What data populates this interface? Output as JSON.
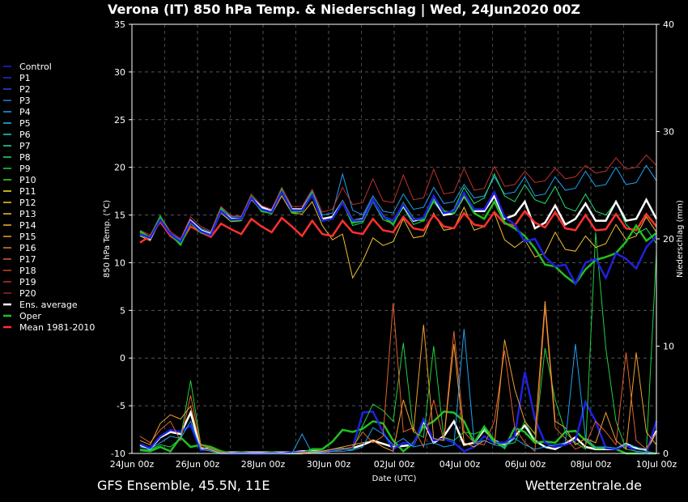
{
  "title": "Verona  (IT)  850 hPa Temp. & Niederschlag | Wed, 24Jun2020 00Z",
  "footer_left": "GFS Ensemble, 45.5N, 11E",
  "footer_right": "Wetterzentrale.de",
  "chart_data": {
    "type": "line",
    "xlabel": "Date (UTC)",
    "ylabel": "850 hPa Temp. (°C)",
    "y2label": "Niederschlag (mm)",
    "ylim": [
      -10,
      35
    ],
    "y2lim": [
      0,
      40
    ],
    "yticks": [
      "35",
      "30",
      "25",
      "20",
      "15",
      "10",
      "5",
      "0",
      "-5",
      "-10"
    ],
    "y2ticks": [
      "40",
      "30",
      "20",
      "10",
      "0"
    ],
    "xticks": [
      "24Jun 00z",
      "26Jun 00z",
      "28Jun 00z",
      "30Jun 00z",
      "02Jul 00z",
      "04Jul 00z",
      "06Jul 00z",
      "08Jul 00z",
      "10Jul 00z"
    ],
    "grid": true,
    "legend_position": "left",
    "legend": [
      {
        "name": "Control",
        "color": "#2020e0"
      },
      {
        "name": "P1",
        "color": "#2030d0"
      },
      {
        "name": "P2",
        "color": "#2050e0"
      },
      {
        "name": "P3",
        "color": "#2080e0"
      },
      {
        "name": "P4",
        "color": "#20a0f0"
      },
      {
        "name": "P5",
        "color": "#20c0f0"
      },
      {
        "name": "P6",
        "color": "#20d0d0"
      },
      {
        "name": "P7",
        "color": "#20e0a0"
      },
      {
        "name": "P8",
        "color": "#20e070"
      },
      {
        "name": "P9",
        "color": "#20d040"
      },
      {
        "name": "P10",
        "color": "#30e030"
      },
      {
        "name": "P11",
        "color": "#f0f020"
      },
      {
        "name": "P12",
        "color": "#f0d020"
      },
      {
        "name": "P13",
        "color": "#f0c030"
      },
      {
        "name": "P14",
        "color": "#f0b040"
      },
      {
        "name": "P15",
        "color": "#f0a030"
      },
      {
        "name": "P16",
        "color": "#e08030"
      },
      {
        "name": "P17",
        "color": "#e06030"
      },
      {
        "name": "P18",
        "color": "#d04030"
      },
      {
        "name": "P19",
        "color": "#c03030"
      },
      {
        "name": "P20",
        "color": "#a02020"
      },
      {
        "name": "Ens. average",
        "color": "#ffffff"
      },
      {
        "name": "Oper",
        "color": "#20c020"
      },
      {
        "name": "Mean 1981-2010",
        "color": "#ff3030"
      }
    ],
    "series": [
      {
        "name": "Ens. average",
        "color": "#ffffff",
        "axis": "temp",
        "values": [
          13.0,
          12.5,
          14.6,
          13.0,
          12.2,
          14.4,
          13.4,
          13.0,
          15.5,
          14.6,
          14.6,
          16.8,
          15.8,
          15.4,
          17.4,
          15.6,
          15.6,
          17.2,
          14.6,
          14.8,
          16.4,
          14.4,
          14.6,
          16.6,
          14.8,
          14.4,
          16.0,
          14.4,
          14.6,
          16.8,
          15.0,
          15.2,
          17.0,
          15.4,
          15.4,
          17.0,
          14.6,
          15.0,
          16.4,
          13.6,
          14.2,
          16.0,
          14.0,
          14.6,
          16.2,
          14.4,
          14.4,
          16.4,
          14.4,
          14.6,
          16.6,
          14.6
        ]
      },
      {
        "name": "Mean 1981-2010",
        "color": "#ff3030",
        "axis": "temp",
        "values": [
          12.1,
          12.8,
          14.3,
          12.8,
          12.1,
          13.8,
          13.2,
          12.7,
          14.1,
          13.5,
          13.0,
          14.6,
          13.8,
          13.2,
          14.7,
          13.8,
          12.8,
          14.4,
          13.0,
          12.8,
          14.4,
          13.2,
          13.0,
          14.6,
          13.4,
          13.2,
          14.8,
          13.6,
          13.4,
          15.0,
          13.8,
          13.6,
          15.2,
          14.0,
          13.8,
          15.3,
          14.1,
          13.9,
          15.4,
          14.2,
          13.7,
          15.3,
          13.6,
          13.4,
          15.0,
          13.4,
          13.5,
          15.1,
          13.6,
          13.4,
          15.1,
          13.8
        ]
      },
      {
        "name": "Oper",
        "color": "#20c020",
        "axis": "temp",
        "values": [
          13.3,
          12.6,
          14.8,
          13.0,
          11.9,
          14.2,
          13.2,
          12.9,
          15.6,
          14.4,
          14.5,
          16.9,
          15.4,
          15.2,
          17.6,
          15.3,
          15.4,
          17.3,
          14.4,
          14.6,
          16.4,
          14.2,
          14.4,
          16.5,
          14.9,
          14.0,
          16.2,
          14.6,
          14.4,
          16.8,
          15.4,
          15.2,
          17.1,
          15.2,
          14.6,
          16.4,
          14.2,
          13.6,
          12.8,
          11.5,
          9.8,
          9.6,
          8.6,
          7.8,
          9.3,
          10.3,
          10.6,
          11.0,
          12.2,
          13.9,
          12.3,
          13.1
        ]
      },
      {
        "name": "Control",
        "color": "#2020e0",
        "axis": "temp",
        "values": [
          13.0,
          12.6,
          14.5,
          13.0,
          12.2,
          14.3,
          13.3,
          12.9,
          15.4,
          14.5,
          14.6,
          16.8,
          15.6,
          15.3,
          17.4,
          15.5,
          15.5,
          17.1,
          14.4,
          14.6,
          16.3,
          14.4,
          14.5,
          16.6,
          14.8,
          14.4,
          16.1,
          14.5,
          14.7,
          17.0,
          15.2,
          15.4,
          17.3,
          15.6,
          15.6,
          17.4,
          14.8,
          14.0,
          12.2,
          12.5,
          10.6,
          9.6,
          9.8,
          7.8,
          10.0,
          10.4,
          8.4,
          11.0,
          10.4,
          9.4,
          11.6,
          12.8
        ]
      },
      {
        "name": "P4",
        "color": "#20a0f0",
        "axis": "temp",
        "values": [
          13.2,
          12.7,
          14.4,
          13.1,
          12.4,
          14.5,
          13.6,
          13.2,
          15.8,
          14.8,
          14.8,
          17.0,
          15.9,
          15.6,
          17.6,
          15.9,
          15.9,
          17.5,
          15.0,
          15.2,
          19.3,
          15.5,
          15.0,
          17.0,
          15.4,
          15.2,
          17.2,
          15.6,
          15.8,
          17.9,
          16.2,
          16.4,
          18.2,
          16.8,
          17.0,
          19.0,
          17.2,
          17.4,
          19.0,
          17.0,
          17.2,
          19.0,
          17.6,
          17.8,
          19.6,
          18.0,
          18.2,
          20.0,
          18.2,
          18.4,
          20.2,
          18.6
        ]
      },
      {
        "name": "P19",
        "color": "#c03030",
        "axis": "temp",
        "values": [
          13.4,
          12.9,
          14.9,
          13.3,
          12.5,
          14.8,
          13.8,
          13.3,
          15.9,
          14.9,
          14.9,
          17.2,
          16.0,
          15.6,
          17.9,
          15.9,
          15.9,
          17.7,
          15.3,
          15.6,
          17.9,
          16.1,
          16.3,
          18.8,
          16.5,
          16.3,
          19.2,
          16.6,
          16.8,
          19.8,
          17.2,
          17.4,
          19.9,
          17.6,
          17.8,
          20.1,
          18.0,
          18.2,
          19.6,
          18.4,
          18.6,
          19.9,
          18.8,
          19.0,
          20.2,
          19.4,
          19.6,
          21.0,
          19.8,
          20.0,
          21.3,
          20.2
        ]
      },
      {
        "name": "P13",
        "color": "#f0c030",
        "axis": "temp",
        "values": [
          12.8,
          12.3,
          14.4,
          12.9,
          12.0,
          14.3,
          13.1,
          12.8,
          15.2,
          14.3,
          14.4,
          16.6,
          15.5,
          15.1,
          17.0,
          15.2,
          15.1,
          16.4,
          13.9,
          12.4,
          13.0,
          8.4,
          10.2,
          12.6,
          11.8,
          12.2,
          14.6,
          12.6,
          12.8,
          15.2,
          13.4,
          13.6,
          15.8,
          13.4,
          13.8,
          15.2,
          12.4,
          11.6,
          12.4,
          10.6,
          11.0,
          13.2,
          11.4,
          11.2,
          12.8,
          11.6,
          12.0,
          14.0,
          12.4,
          12.8,
          14.8,
          13.2
        ]
      },
      {
        "name": "P8",
        "color": "#20e070",
        "axis": "temp",
        "values": [
          13.1,
          12.5,
          14.6,
          12.9,
          12.1,
          14.2,
          13.3,
          12.9,
          15.5,
          14.5,
          14.6,
          16.9,
          15.7,
          15.3,
          17.4,
          15.6,
          15.6,
          17.2,
          14.5,
          14.7,
          16.3,
          13.9,
          14.2,
          16.4,
          14.5,
          14.1,
          15.8,
          14.0,
          14.4,
          16.4,
          15.0,
          15.6,
          17.9,
          16.2,
          16.8,
          19.3,
          17.0,
          16.4,
          18.2,
          16.6,
          16.2,
          18.0,
          15.8,
          15.4,
          17.2,
          15.4,
          15.0,
          16.4,
          14.0,
          13.0,
          13.6,
          12.0
        ]
      }
    ],
    "precip_series": [
      {
        "name": "Ens. average",
        "color": "#ffffff",
        "values": [
          0.8,
          0.4,
          1.5,
          2.0,
          1.8,
          3.8,
          0.4,
          0.5,
          0.1,
          0.1,
          0.1,
          0.1,
          0.1,
          0.1,
          0.1,
          0.1,
          0.2,
          0.2,
          0.2,
          0.3,
          0.4,
          0.5,
          0.8,
          1.2,
          0.9,
          0.6,
          0.7,
          0.8,
          3.0,
          1.0,
          1.6,
          3.0,
          0.8,
          1.0,
          2.2,
          1.2,
          0.8,
          1.6,
          2.6,
          1.2,
          0.6,
          0.4,
          0.9,
          1.5,
          0.6,
          0.4,
          0.4,
          0.4,
          0.9,
          0.5,
          0.3,
          2.1
        ]
      },
      {
        "name": "Oper",
        "color": "#20c020",
        "values": [
          0.3,
          0.2,
          0.6,
          0.2,
          1.5,
          0.6,
          0.8,
          0.6,
          0.2,
          0.0,
          0.1,
          0.0,
          0.0,
          0.1,
          0.0,
          0.0,
          0.0,
          0.4,
          0.4,
          1.1,
          2.2,
          2.0,
          2.3,
          3.0,
          2.8,
          1.2,
          0.2,
          1.0,
          2.5,
          3.0,
          3.9,
          3.8,
          3.0,
          1.0,
          2.5,
          1.2,
          0.5,
          2.4,
          2.0,
          1.0,
          1.1,
          1.0,
          2.0,
          2.1,
          1.2,
          0.5,
          0.5,
          0.4,
          0.0,
          0.0,
          0.0,
          0.0
        ]
      },
      {
        "name": "Control",
        "color": "#2020e0",
        "values": [
          0.9,
          0.5,
          1.6,
          2.2,
          2.0,
          2.6,
          0.3,
          0.4,
          0.0,
          0.0,
          0.0,
          0.0,
          0.0,
          0.0,
          0.0,
          0.1,
          0.1,
          0.1,
          0.2,
          0.3,
          0.4,
          0.5,
          3.8,
          3.9,
          2.0,
          0.4,
          1.0,
          0.8,
          3.2,
          1.2,
          1.4,
          1.0,
          0.2,
          0.6,
          1.6,
          1.0,
          1.0,
          1.6,
          7.6,
          3.2,
          1.0,
          0.6,
          0.8,
          1.2,
          4.8,
          3.0,
          0.5,
          0.4,
          0.8,
          0.2,
          0.0,
          3.0
        ]
      },
      {
        "name": "P9",
        "color": "#20d040",
        "values": [
          0.4,
          0.3,
          0.8,
          0.6,
          1.4,
          6.8,
          0.8,
          0.4,
          0.0,
          0.0,
          0.0,
          0.0,
          0.0,
          0.0,
          0.0,
          0.0,
          0.0,
          0.2,
          0.2,
          0.4,
          0.5,
          0.3,
          2.6,
          4.6,
          4.0,
          3.0,
          10.3,
          2.0,
          1.5,
          10.0,
          1.5,
          1.2,
          2.0,
          1.8,
          2.2,
          1.0,
          0.8,
          1.0,
          3.0,
          1.2,
          9.8,
          5.0,
          2.0,
          1.0,
          0.4,
          20.6,
          9.8,
          3.0,
          0.4,
          0.2,
          0.1,
          18.8
        ]
      },
      {
        "name": "P17",
        "color": "#e06030",
        "values": [
          1.6,
          1.0,
          2.2,
          3.0,
          1.2,
          5.4,
          0.8,
          0.5,
          0.1,
          0.0,
          0.0,
          0.0,
          0.0,
          0.0,
          0.0,
          0.0,
          0.1,
          0.1,
          0.2,
          0.2,
          0.4,
          0.6,
          2.0,
          1.0,
          1.6,
          14.0,
          2.0,
          2.4,
          0.6,
          5.0,
          1.2,
          11.4,
          2.0,
          1.0,
          0.8,
          3.0,
          9.6,
          2.4,
          1.0,
          0.2,
          13.6,
          2.4,
          1.4,
          0.4,
          0.8,
          3.0,
          2.0,
          0.8,
          9.4,
          1.2,
          0.4,
          2.0
        ]
      },
      {
        "name": "P15",
        "color": "#f0a030",
        "values": [
          1.2,
          0.8,
          2.8,
          3.6,
          3.2,
          4.4,
          0.6,
          0.3,
          0.0,
          0.0,
          0.0,
          0.0,
          0.0,
          0.0,
          0.0,
          0.0,
          0.0,
          0.1,
          0.2,
          0.4,
          0.6,
          0.8,
          1.0,
          1.2,
          0.6,
          0.2,
          5.0,
          2.0,
          12.0,
          1.4,
          1.2,
          10.2,
          1.0,
          0.6,
          1.2,
          0.8,
          10.6,
          6.0,
          3.0,
          1.8,
          14.2,
          3.0,
          2.4,
          0.8,
          1.4,
          1.0,
          3.8,
          1.2,
          0.4,
          9.4,
          2.0,
          0.8
        ]
      },
      {
        "name": "P4",
        "color": "#20a0f0",
        "values": [
          0.6,
          0.4,
          1.0,
          1.6,
          1.4,
          3.0,
          0.4,
          0.2,
          0.0,
          0.0,
          0.0,
          0.0,
          0.0,
          0.0,
          0.0,
          0.0,
          1.8,
          0.0,
          0.1,
          0.2,
          0.2,
          0.3,
          0.6,
          2.4,
          1.8,
          0.8,
          1.4,
          0.6,
          0.8,
          1.0,
          0.6,
          0.8,
          11.6,
          1.0,
          1.2,
          0.8,
          0.6,
          1.4,
          0.8,
          0.4,
          0.6,
          0.8,
          1.0,
          10.2,
          1.4,
          0.6,
          0.6,
          0.5,
          0.8,
          0.6,
          0.2,
          0.0
        ]
      }
    ],
    "mini_series_note": "",
    "annotations": []
  }
}
